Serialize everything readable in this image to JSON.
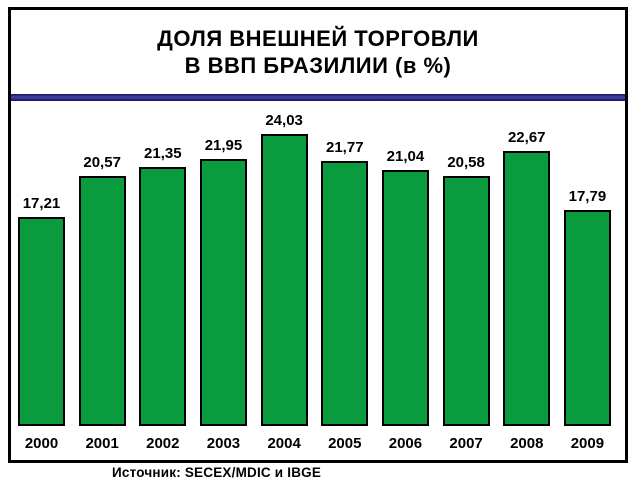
{
  "title": {
    "line1": "ДОЛЯ ВНЕШНЕЙ ТОРГОВЛИ",
    "line2": "В ВВП БРАЗИЛИИ (в %)"
  },
  "source": "Источник: SECEX/MDIC и IBGE",
  "colors": {
    "bar_fill": "#0a9b3e",
    "bar_border": "#000000",
    "divider_band": "#2b2b88",
    "frame_border": "#000000",
    "background": "#ffffff",
    "text": "#000000"
  },
  "chart_data": {
    "type": "bar",
    "title": "ДОЛЯ ВНЕШНЕЙ ТОРГОВЛИ В ВВП БРАЗИЛИИ (в %)",
    "categories": [
      "2000",
      "2001",
      "2002",
      "2003",
      "2004",
      "2005",
      "2006",
      "2007",
      "2008",
      "2009"
    ],
    "values": [
      17.21,
      20.57,
      21.35,
      21.95,
      24.03,
      21.77,
      21.04,
      20.58,
      22.67,
      17.79
    ],
    "value_labels": [
      "17,21",
      "20,57",
      "21,35",
      "21,95",
      "24,03",
      "21,77",
      "21,04",
      "20,58",
      "22,67",
      "17,79"
    ],
    "xlabel": "",
    "ylabel": "",
    "ylim": [
      0,
      26
    ],
    "grid": false,
    "legend": false,
    "data_labels": true,
    "source": "Источник: SECEX/MDIC и IBGE"
  }
}
